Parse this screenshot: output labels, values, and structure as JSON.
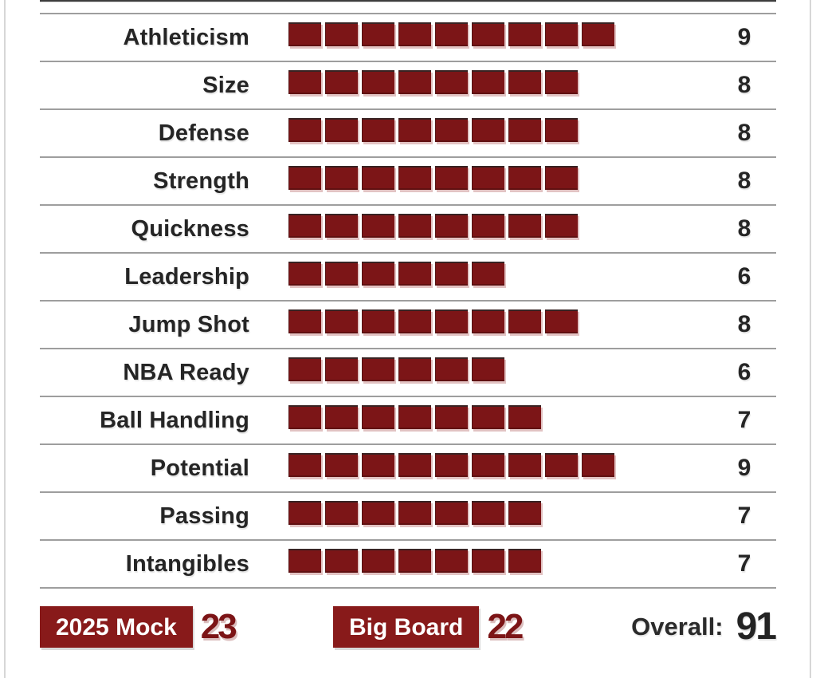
{
  "colors": {
    "accent_red": "#7C1517",
    "badge_red": "#881A1A",
    "separator_gray": "#9E9E9E",
    "edge_gray": "#D7D7D7",
    "text_dark": "#252525"
  },
  "ratings": [
    {
      "label": "Athleticism",
      "value": 9
    },
    {
      "label": "Size",
      "value": 8
    },
    {
      "label": "Defense",
      "value": 8
    },
    {
      "label": "Strength",
      "value": 8
    },
    {
      "label": "Quickness",
      "value": 8
    },
    {
      "label": "Leadership",
      "value": 6
    },
    {
      "label": "Jump Shot",
      "value": 8
    },
    {
      "label": "NBA Ready",
      "value": 6
    },
    {
      "label": "Ball Handling",
      "value": 7
    },
    {
      "label": "Potential",
      "value": 9
    },
    {
      "label": "Passing",
      "value": 7
    },
    {
      "label": "Intangibles",
      "value": 7
    }
  ],
  "footer": {
    "mock_label": "2025 Mock",
    "mock_value": "23",
    "board_label": "Big Board",
    "board_value": "22",
    "overall_label": "Overall:",
    "overall_value": "91"
  },
  "chart_data": {
    "type": "bar",
    "categories": [
      "Athleticism",
      "Size",
      "Defense",
      "Strength",
      "Quickness",
      "Leadership",
      "Jump Shot",
      "NBA Ready",
      "Ball Handling",
      "Potential",
      "Passing",
      "Intangibles"
    ],
    "values": [
      9,
      8,
      8,
      8,
      8,
      6,
      8,
      6,
      7,
      9,
      7,
      7
    ],
    "title": "",
    "xlabel": "",
    "ylabel": "",
    "ylim": [
      0,
      10
    ],
    "grid": false,
    "legend": "none",
    "annotations": {
      "2025 Mock": 23,
      "Big Board": 22,
      "Overall": 91
    }
  }
}
